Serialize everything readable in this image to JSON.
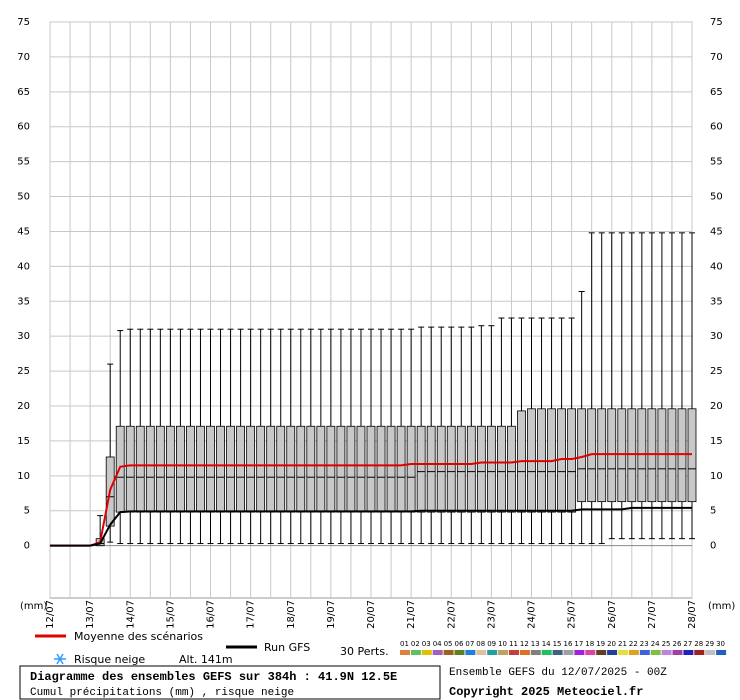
{
  "chart_data": {
    "type": "boxplot",
    "title": "Diagramme des ensembles GEFS sur 384h : 41.9N 12.5E",
    "subtitle": "Cumul précipitations (mm) , risque neige",
    "run_info": "Ensemble GEFS du 12/07/2025 - 00Z",
    "copyright": "Copyright 2025 Meteociel.fr",
    "y_unit": "(mm)",
    "snow_label": "Risque neige",
    "altitude": "Alt. 141m",
    "members_label": "30 Perts.",
    "ylim": [
      -7.5,
      75
    ],
    "yticks": [
      0,
      5,
      10,
      15,
      20,
      25,
      30,
      35,
      40,
      45,
      50,
      55,
      60,
      65,
      70,
      75
    ],
    "grid": true,
    "box_color": "#c8c8c8",
    "categories": [
      "12/07",
      null,
      null,
      null,
      "13/07",
      null,
      null,
      null,
      "14/07",
      null,
      null,
      null,
      "15/07",
      null,
      null,
      null,
      "16/07",
      null,
      null,
      null,
      "17/07",
      null,
      null,
      null,
      "18/07",
      null,
      null,
      null,
      "19/07",
      null,
      null,
      null,
      "20/07",
      null,
      null,
      null,
      "21/07",
      null,
      null,
      null,
      "22/07",
      null,
      null,
      null,
      "23/07",
      null,
      null,
      null,
      "24/07",
      null,
      null,
      null,
      "25/07",
      null,
      null,
      null,
      "26/07",
      null,
      null,
      null,
      "27/07",
      null,
      null,
      null,
      "28/07"
    ],
    "boxes": {
      "low": [
        null,
        null,
        null,
        null,
        null,
        0,
        0.5,
        0.3,
        0.3,
        0.3,
        0.3,
        0.3,
        0.3,
        0.3,
        0.3,
        0.3,
        0.3,
        0.3,
        0.3,
        0.3,
        0.3,
        0.3,
        0.3,
        0.3,
        0.3,
        0.3,
        0.3,
        0.3,
        0.3,
        0.3,
        0.3,
        0.3,
        0.3,
        0.3,
        0.3,
        0.3,
        0.3,
        0.3,
        0.3,
        0.3,
        0.3,
        0.3,
        0.3,
        0.3,
        0.3,
        0.3,
        0.3,
        0.3,
        0.3,
        0.3,
        0.3,
        0.3,
        0.3,
        0.3,
        0.3,
        0.3,
        1,
        1,
        1,
        1,
        1,
        1,
        1,
        1,
        1
      ],
      "q1": [
        null,
        null,
        null,
        null,
        null,
        0,
        2.8,
        4.8,
        4.8,
        4.8,
        4.8,
        4.8,
        4.8,
        4.8,
        4.8,
        4.8,
        4.8,
        4.8,
        4.8,
        4.8,
        4.8,
        4.8,
        4.8,
        4.8,
        4.8,
        4.8,
        4.8,
        4.8,
        4.8,
        4.8,
        4.8,
        4.8,
        4.8,
        4.8,
        4.8,
        4.8,
        4.8,
        4.8,
        4.8,
        4.8,
        4.8,
        4.8,
        4.8,
        4.8,
        4.8,
        4.8,
        4.8,
        4.8,
        4.8,
        4.8,
        4.8,
        4.8,
        4.8,
        6.3,
        6.3,
        6.3,
        6.3,
        6.3,
        6.3,
        6.3,
        6.3,
        6.3,
        6.3,
        6.3,
        6.3
      ],
      "median": [
        null,
        null,
        null,
        null,
        null,
        0.3,
        7,
        9.8,
        9.8,
        9.8,
        9.8,
        9.8,
        9.8,
        9.8,
        9.8,
        9.8,
        9.8,
        9.8,
        9.8,
        9.8,
        9.8,
        9.8,
        9.8,
        9.8,
        9.8,
        9.8,
        9.8,
        9.8,
        9.8,
        9.8,
        9.8,
        9.8,
        9.8,
        9.8,
        9.8,
        9.8,
        9.8,
        10.6,
        10.6,
        10.6,
        10.6,
        10.6,
        10.6,
        10.6,
        10.6,
        10.6,
        10.6,
        10.6,
        10.6,
        10.6,
        10.6,
        10.6,
        10.6,
        11,
        11,
        11,
        11,
        11,
        11,
        11,
        11,
        11,
        11,
        11,
        11
      ],
      "q3": [
        null,
        null,
        null,
        null,
        null,
        1,
        12.7,
        17.1,
        17.1,
        17.1,
        17.1,
        17.1,
        17.1,
        17.1,
        17.1,
        17.1,
        17.1,
        17.1,
        17.1,
        17.1,
        17.1,
        17.1,
        17.1,
        17.1,
        17.1,
        17.1,
        17.1,
        17.1,
        17.1,
        17.1,
        17.1,
        17.1,
        17.1,
        17.1,
        17.1,
        17.1,
        17.1,
        17.1,
        17.1,
        17.1,
        17.1,
        17.1,
        17.1,
        17.1,
        17.1,
        17.1,
        17.1,
        19.3,
        19.6,
        19.6,
        19.6,
        19.6,
        19.6,
        19.6,
        19.6,
        19.6,
        19.6,
        19.6,
        19.6,
        19.6,
        19.6,
        19.6,
        19.6,
        19.6,
        19.6
      ],
      "high": [
        null,
        null,
        null,
        null,
        null,
        4.3,
        26,
        30.8,
        31,
        31,
        31,
        31,
        31,
        31,
        31,
        31,
        31,
        31,
        31,
        31,
        31,
        31,
        31,
        31,
        31,
        31,
        31,
        31,
        31,
        31,
        31,
        31,
        31,
        31,
        31,
        31,
        31,
        31.3,
        31.3,
        31.3,
        31.3,
        31.3,
        31.3,
        31.5,
        31.5,
        32.6,
        32.6,
        32.6,
        32.6,
        32.6,
        32.6,
        32.6,
        32.6,
        36.4,
        44.8,
        44.8,
        44.8,
        44.8,
        44.8,
        44.8,
        44.8,
        44.8,
        44.8,
        44.8,
        44.8
      ]
    },
    "series": [
      {
        "name": "Moyenne des scénarios",
        "color": "#e00000",
        "values": [
          0,
          0,
          0,
          0,
          0,
          0.5,
          8,
          11.3,
          11.5,
          11.5,
          11.5,
          11.5,
          11.5,
          11.5,
          11.5,
          11.5,
          11.5,
          11.5,
          11.5,
          11.5,
          11.5,
          11.5,
          11.5,
          11.5,
          11.5,
          11.5,
          11.5,
          11.5,
          11.5,
          11.5,
          11.5,
          11.5,
          11.5,
          11.5,
          11.5,
          11.5,
          11.7,
          11.7,
          11.7,
          11.7,
          11.7,
          11.7,
          11.7,
          11.9,
          11.9,
          11.9,
          11.9,
          12.1,
          12.1,
          12.1,
          12.1,
          12.4,
          12.4,
          12.7,
          13.1,
          13.1,
          13.1,
          13.1,
          13.1,
          13.1,
          13.1,
          13.1,
          13.1,
          13.1,
          13.1
        ]
      },
      {
        "name": "Run GFS",
        "color": "#000000",
        "values": [
          0,
          0,
          0,
          0,
          0,
          0.3,
          3,
          4.8,
          4.9,
          4.9,
          4.9,
          4.9,
          4.9,
          4.9,
          4.9,
          4.9,
          4.9,
          4.9,
          4.9,
          4.9,
          4.9,
          4.9,
          4.9,
          4.9,
          4.9,
          4.9,
          4.9,
          4.9,
          4.9,
          4.9,
          4.9,
          4.9,
          4.9,
          4.9,
          4.9,
          4.9,
          4.9,
          5,
          5,
          5,
          5,
          5,
          5,
          5,
          5,
          5,
          5,
          5,
          5,
          5,
          5,
          5,
          5,
          5.2,
          5.2,
          5.2,
          5.2,
          5.2,
          5.4,
          5.4,
          5.4,
          5.4,
          5.4,
          5.4,
          5.4
        ]
      }
    ],
    "members": [
      {
        "label": "01",
        "color": "#e08040"
      },
      {
        "label": "02",
        "color": "#60c060"
      },
      {
        "label": "03",
        "color": "#e0c000"
      },
      {
        "label": "04",
        "color": "#a060c0"
      },
      {
        "label": "05",
        "color": "#a06020"
      },
      {
        "label": "06",
        "color": "#608020"
      },
      {
        "label": "07",
        "color": "#2080e0"
      },
      {
        "label": "08",
        "color": "#e0c0a0"
      },
      {
        "label": "09",
        "color": "#20a0a0"
      },
      {
        "label": "10",
        "color": "#c0a060"
      },
      {
        "label": "11",
        "color": "#c04040"
      },
      {
        "label": "12",
        "color": "#e07020"
      },
      {
        "label": "13",
        "color": "#808080"
      },
      {
        "label": "14",
        "color": "#20c060"
      },
      {
        "label": "15",
        "color": "#406080"
      },
      {
        "label": "16",
        "color": "#a0a0a0"
      },
      {
        "label": "17",
        "color": "#a020e0"
      },
      {
        "label": "18",
        "color": "#e040a0"
      },
      {
        "label": "19",
        "color": "#604020"
      },
      {
        "label": "20",
        "color": "#2040a0"
      },
      {
        "label": "21",
        "color": "#e0e040"
      },
      {
        "label": "22",
        "color": "#e0a020"
      },
      {
        "label": "23",
        "color": "#4060e0"
      },
      {
        "label": "24",
        "color": "#80c040"
      },
      {
        "label": "25",
        "color": "#c080e0"
      },
      {
        "label": "26",
        "color": "#a040a0"
      },
      {
        "label": "27",
        "color": "#2020c0"
      },
      {
        "label": "28",
        "color": "#a02020"
      },
      {
        "label": "29",
        "color": "#c0c0c0"
      },
      {
        "label": "30",
        "color": "#2060c0"
      }
    ]
  }
}
